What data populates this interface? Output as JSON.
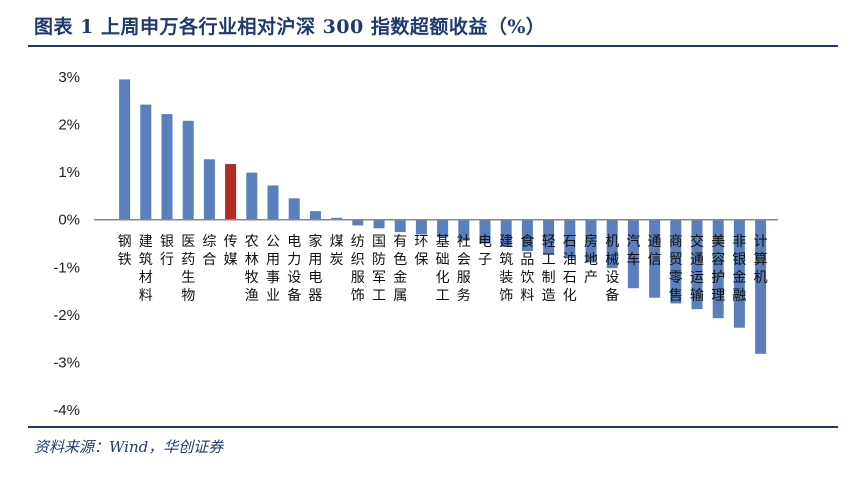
{
  "title": "图表 1   上周申万各行业相对沪深 300 指数超额收益（%）",
  "source": "资料来源：Wind，华创证券",
  "chart_data": {
    "type": "bar",
    "ylim": [
      -4,
      3
    ],
    "yticks": [
      "3%",
      "2%",
      "1%",
      "0%",
      "-1%",
      "-2%",
      "-3%",
      "-4%"
    ],
    "colors": {
      "default": "#5b7fbd",
      "highlight": "#b22c23"
    },
    "highlight_category": "传媒",
    "categories": [
      "钢铁",
      "建筑材料",
      "银行",
      "医药生物",
      "综合",
      "传媒",
      "农林牧渔",
      "公用事业",
      "电力设备",
      "家用电器",
      "煤炭",
      "纺织服饰",
      "国防军工",
      "有色金属",
      "环保",
      "基础化工",
      "社会服务",
      "电子",
      "建筑装饰",
      "食品饮料",
      "轻工制造",
      "石油石化",
      "房地产",
      "机械设备",
      "汽车",
      "通信",
      "商贸零售",
      "交通运输",
      "美容护理",
      "非银金融",
      "计算机"
    ],
    "labels": [
      "钢\n铁",
      "建\n筑\n材\n料",
      "银\n行",
      "医\n药\n生\n物",
      "综\n合",
      "传\n媒",
      "农\n林\n牧\n渔",
      "公\n用\n事\n业",
      "电\n力\n设\n备",
      "家\n用\n电\n器",
      "煤\n炭",
      "纺\n织\n服\n饰",
      "国\n防\n军\n工",
      "有\n色\n金\n属",
      "环\n保",
      "基\n础\n化\n工",
      "社\n会\n服\n务",
      "电\n子",
      "建\n筑\n装\n饰",
      "食\n品\n饮\n料",
      "轻\n工\n制\n造",
      "石\n油\n石\n化",
      "房\n地\n产",
      "机\n械\n设\n备",
      "汽\n车",
      "通\n信",
      "商\n贸\n零\n售",
      "交\n通\n运\n输",
      "美\n容\n护\n理",
      "非\n银\n金\n融",
      "计\n算\n机"
    ],
    "values": [
      2.95,
      2.42,
      2.22,
      2.08,
      1.27,
      1.17,
      0.99,
      0.72,
      0.45,
      0.18,
      0.04,
      -0.12,
      -0.18,
      -0.26,
      -0.31,
      -0.37,
      -0.44,
      -0.5,
      -0.57,
      -0.66,
      -0.73,
      -0.81,
      -0.9,
      -1.02,
      -1.44,
      -1.64,
      -1.76,
      -1.88,
      -2.07,
      -2.27,
      -2.82
    ]
  }
}
